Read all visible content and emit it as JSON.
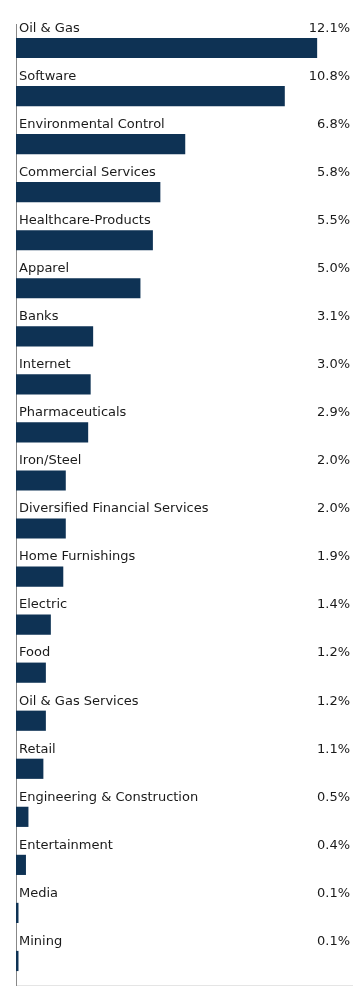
{
  "chart_data": {
    "type": "bar",
    "orientation": "horizontal",
    "categories": [
      "Oil & Gas",
      "Software",
      "Environmental Control",
      "Commercial Services",
      "Healthcare-Products",
      "Apparel",
      "Banks",
      "Internet",
      "Pharmaceuticals",
      "Iron/Steel",
      "Diversified Financial Services",
      "Home Furnishings",
      "Electric",
      "Food",
      "Oil & Gas Services",
      "Retail",
      "Engineering & Construction",
      "Entertainment",
      "Media",
      "Mining"
    ],
    "values": [
      12.1,
      10.8,
      6.8,
      5.8,
      5.5,
      5.0,
      3.1,
      3.0,
      2.9,
      2.0,
      2.0,
      1.9,
      1.4,
      1.2,
      1.2,
      1.1,
      0.5,
      0.4,
      0.1,
      0.1
    ],
    "value_labels": [
      "12.1%",
      "10.8%",
      "6.8%",
      "5.8%",
      "5.5%",
      "5.0%",
      "3.1%",
      "3.0%",
      "2.9%",
      "2.0%",
      "2.0%",
      "1.9%",
      "1.4%",
      "1.2%",
      "1.2%",
      "1.1%",
      "0.5%",
      "0.4%",
      "0.1%",
      "0.1%"
    ],
    "color": "#0e3254",
    "xlim": [
      0,
      13.5
    ],
    "grid": false,
    "tick_labels": false,
    "data_labels": true
  }
}
